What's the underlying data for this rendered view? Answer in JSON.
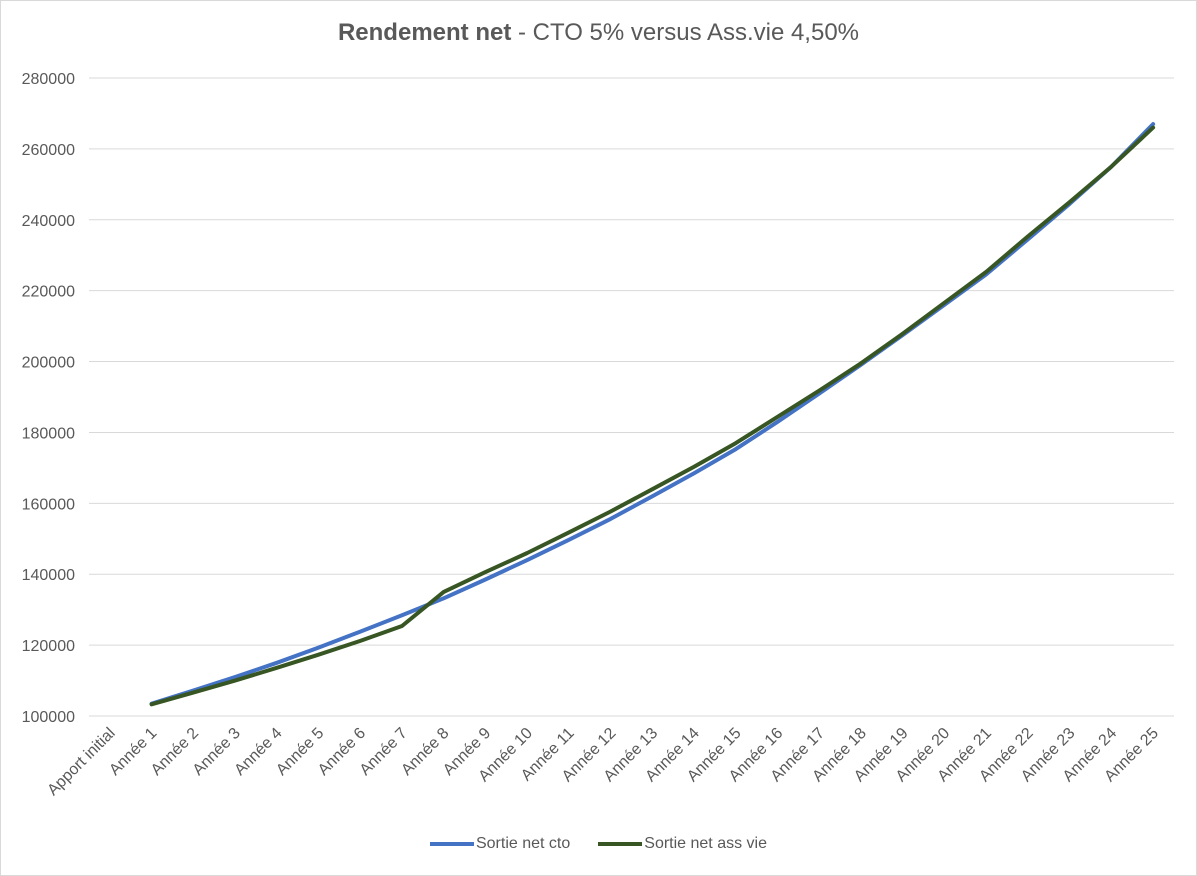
{
  "chart_data": {
    "type": "line",
    "title_bold": "Rendement net",
    "title_rest": " - CTO 5% versus Ass.vie 4,50%",
    "categories": [
      "Apport initial",
      "Année 1",
      "Année 2",
      "Année 3",
      "Année 4",
      "Année 5",
      "Année 6",
      "Année 7",
      "Année 8",
      "Année 9",
      "Année 10",
      "Année 11",
      "Année 12",
      "Année 13",
      "Année 14",
      "Année 15",
      "Année 16",
      "Année 17",
      "Année 18",
      "Année 19",
      "Année 20",
      "Année 21",
      "Année 22",
      "Année 23",
      "Année 24",
      "Année 25"
    ],
    "series": [
      {
        "name": "Sortie net cto",
        "color": "#4472c4",
        "values": [
          null,
          103500,
          107200,
          111000,
          115000,
          119300,
          123800,
          128400,
          133200,
          138500,
          144000,
          149700,
          155600,
          162000,
          168500,
          175300,
          183000,
          191000,
          199100,
          207500,
          216000,
          224600,
          234500,
          244500,
          255000,
          267000
        ]
      },
      {
        "name": "Sortie net ass vie",
        "color": "#375623",
        "values": [
          null,
          103300,
          106600,
          110000,
          113600,
          117300,
          121200,
          125400,
          135000,
          140600,
          146000,
          151800,
          157700,
          164000,
          170300,
          177000,
          184400,
          191800,
          199500,
          207900,
          216600,
          225300,
          235300,
          245000,
          255000,
          266000
        ]
      }
    ],
    "y_ticks": [
      100000,
      120000,
      140000,
      160000,
      180000,
      200000,
      220000,
      240000,
      260000,
      280000
    ],
    "ylim": [
      100000,
      280000
    ],
    "grid": true,
    "legend_position": "bottom"
  }
}
